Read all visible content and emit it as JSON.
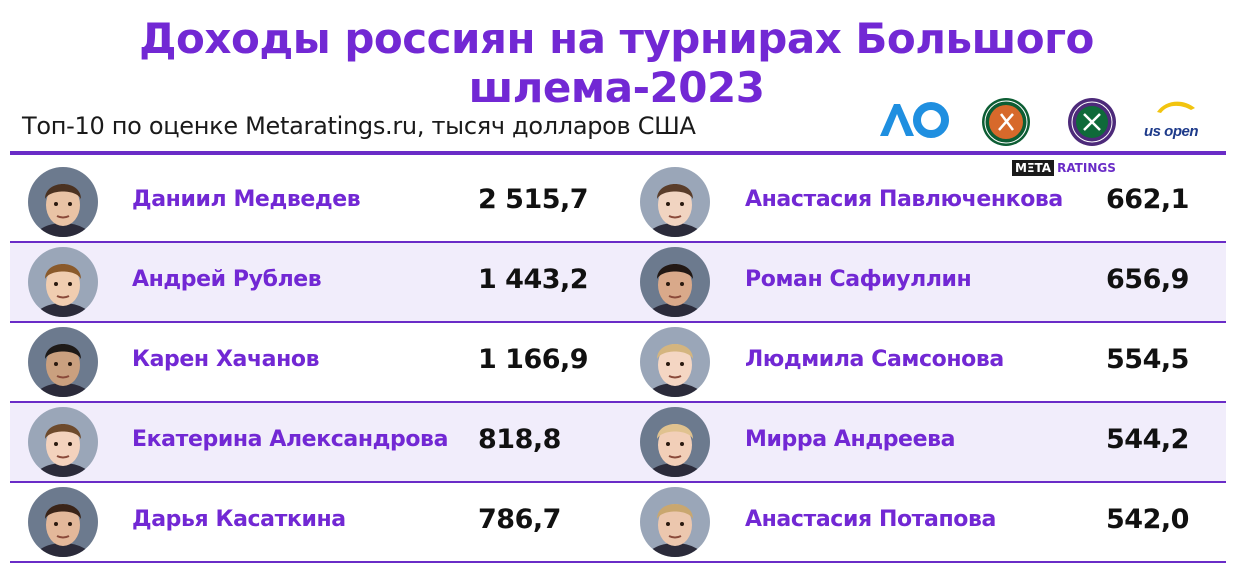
{
  "header": {
    "title": "Доходы россиян на турнирах Большого шлема-2023",
    "subtitle": "Топ-10 по оценке Metaratings.ru, тысяч долларов США",
    "logos": {
      "ao": "ΛO",
      "uso": "us open",
      "meta_a": "MΞTA",
      "meta_b": "RATINGS"
    }
  },
  "colors": {
    "accent": "#7228d4",
    "rule": "#6a2cc7",
    "row_shade": "#f1edfb",
    "value": "#111111"
  },
  "chart_data": {
    "type": "table",
    "title": "Доходы россиян на турнирах Большого шлема-2023",
    "subtitle": "Топ-10 по оценке Metaratings.ru, тысяч долларов США",
    "left": [
      {
        "name": "Даниил Медведев",
        "value_text": "2 515,7",
        "value": 2515.7
      },
      {
        "name": "Андрей Рублев",
        "value_text": "1 443,2",
        "value": 1443.2
      },
      {
        "name": "Карен Хачанов",
        "value_text": "1 166,9",
        "value": 1166.9
      },
      {
        "name": "Екатерина Александрова",
        "value_text": "818,8",
        "value": 818.8
      },
      {
        "name": "Дарья Касаткина",
        "value_text": "786,7",
        "value": 786.7
      }
    ],
    "right": [
      {
        "name": "Анастасия Павлюченкова",
        "value_text": "662,1",
        "value": 662.1
      },
      {
        "name": "Роман Сафиуллин",
        "value_text": "656,9",
        "value": 656.9
      },
      {
        "name": "Людмила Самсонова",
        "value_text": "554,5",
        "value": 554.5
      },
      {
        "name": "Мирра Андреева",
        "value_text": "544,2",
        "value": 544.2
      },
      {
        "name": "Анастасия Потапова",
        "value_text": "542,0",
        "value": 542.0
      }
    ]
  }
}
